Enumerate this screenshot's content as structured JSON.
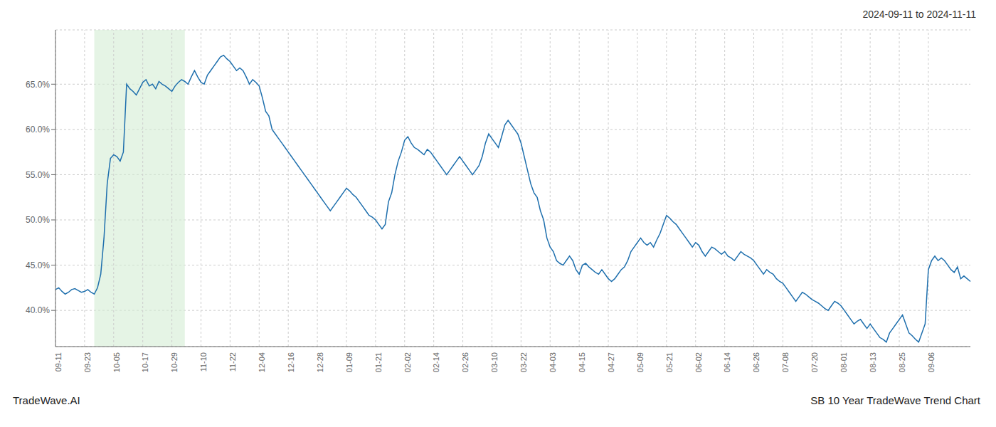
{
  "chart_data": {
    "type": "line",
    "title": "2024-09-11 to 2024-11-11",
    "annotations": [
      "TradeWave.AI",
      "SB 10 Year TradeWave Trend Chart"
    ],
    "color": "#1e6fad",
    "grid": true,
    "ylim": [
      36.0,
      71.0
    ],
    "yticks": [
      {
        "value": 40.0,
        "label": "40.0%"
      },
      {
        "value": 45.0,
        "label": "45.0%"
      },
      {
        "value": 50.0,
        "label": "50.0%"
      },
      {
        "value": 55.0,
        "label": "55.0%"
      },
      {
        "value": 60.0,
        "label": "60.0%"
      },
      {
        "value": 65.0,
        "label": "65.0%"
      }
    ],
    "highlight": {
      "from": 12,
      "to": 40,
      "color": "#d4ecd4"
    },
    "categories": [
      "09-11",
      null,
      null,
      null,
      null,
      null,
      null,
      null,
      null,
      "09-23",
      null,
      null,
      null,
      null,
      null,
      null,
      null,
      null,
      "10-05",
      null,
      null,
      null,
      null,
      null,
      null,
      null,
      null,
      "10-17",
      null,
      null,
      null,
      null,
      null,
      null,
      null,
      null,
      "10-29",
      null,
      null,
      null,
      null,
      null,
      null,
      null,
      null,
      "11-10",
      null,
      null,
      null,
      null,
      null,
      null,
      null,
      null,
      "11-22",
      null,
      null,
      null,
      null,
      null,
      null,
      null,
      null,
      "12-04",
      null,
      null,
      null,
      null,
      null,
      null,
      null,
      null,
      "12-16",
      null,
      null,
      null,
      null,
      null,
      null,
      null,
      null,
      "12-28",
      null,
      null,
      null,
      null,
      null,
      null,
      null,
      null,
      "01-09",
      null,
      null,
      null,
      null,
      null,
      null,
      null,
      null,
      "01-21",
      null,
      null,
      null,
      null,
      null,
      null,
      null,
      null,
      "02-02",
      null,
      null,
      null,
      null,
      null,
      null,
      null,
      null,
      "02-14",
      null,
      null,
      null,
      null,
      null,
      null,
      null,
      null,
      "02-26",
      null,
      null,
      null,
      null,
      null,
      null,
      null,
      null,
      "03-10",
      null,
      null,
      null,
      null,
      null,
      null,
      null,
      null,
      "03-22",
      null,
      null,
      null,
      null,
      null,
      null,
      null,
      null,
      "04-03",
      null,
      null,
      null,
      null,
      null,
      null,
      null,
      null,
      "04-15",
      null,
      null,
      null,
      null,
      null,
      null,
      null,
      null,
      "04-27",
      null,
      null,
      null,
      null,
      null,
      null,
      null,
      null,
      "05-09",
      null,
      null,
      null,
      null,
      null,
      null,
      null,
      null,
      "05-21",
      null,
      null,
      null,
      null,
      null,
      null,
      null,
      null,
      "06-02",
      null,
      null,
      null,
      null,
      null,
      null,
      null,
      null,
      "06-14",
      null,
      null,
      null,
      null,
      null,
      null,
      null,
      null,
      "06-26",
      null,
      null,
      null,
      null,
      null,
      null,
      null,
      null,
      "07-08",
      null,
      null,
      null,
      null,
      null,
      null,
      null,
      null,
      "07-20",
      null,
      null,
      null,
      null,
      null,
      null,
      null,
      null,
      "08-01",
      null,
      null,
      null,
      null,
      null,
      null,
      null,
      null,
      "08-13",
      null,
      null,
      null,
      null,
      null,
      null,
      null,
      null,
      "08-25",
      null,
      null,
      null,
      null,
      null,
      null,
      null,
      null,
      "09-06",
      null,
      null,
      null,
      null,
      null,
      null,
      null,
      null,
      null,
      null,
      null,
      null,
      null
    ],
    "values": [
      42.3,
      42.5,
      42.1,
      41.8,
      42.0,
      42.3,
      42.4,
      42.2,
      42.0,
      42.1,
      42.3,
      42.0,
      41.8,
      42.5,
      44.0,
      48.0,
      54.0,
      56.8,
      57.2,
      57.0,
      56.5,
      57.5,
      65.0,
      64.5,
      64.2,
      63.8,
      64.5,
      65.2,
      65.5,
      64.8,
      65.0,
      64.5,
      65.3,
      65.0,
      64.8,
      64.5,
      64.2,
      64.8,
      65.2,
      65.5,
      65.3,
      65.0,
      65.8,
      66.5,
      65.8,
      65.2,
      65.0,
      66.0,
      66.5,
      67.0,
      67.5,
      68.0,
      68.2,
      67.8,
      67.5,
      67.0,
      66.5,
      66.8,
      66.5,
      65.8,
      65.0,
      65.5,
      65.2,
      64.8,
      63.5,
      62.0,
      61.5,
      60.0,
      59.5,
      59.0,
      58.5,
      58.0,
      57.5,
      57.0,
      56.5,
      56.0,
      55.5,
      55.0,
      54.5,
      54.0,
      53.5,
      53.0,
      52.5,
      52.0,
      51.5,
      51.0,
      51.5,
      52.0,
      52.5,
      53.0,
      53.5,
      53.2,
      52.8,
      52.5,
      52.0,
      51.5,
      51.0,
      50.5,
      50.3,
      50.0,
      49.5,
      49.0,
      49.5,
      52.0,
      53.0,
      55.0,
      56.5,
      57.5,
      58.8,
      59.2,
      58.5,
      58.0,
      57.8,
      57.5,
      57.2,
      57.8,
      57.5,
      57.0,
      56.5,
      56.0,
      55.5,
      55.0,
      55.5,
      56.0,
      56.5,
      57.0,
      56.5,
      56.0,
      55.5,
      55.0,
      55.5,
      56.0,
      57.0,
      58.5,
      59.5,
      59.0,
      58.5,
      58.0,
      59.2,
      60.5,
      61.0,
      60.5,
      60.0,
      59.5,
      58.5,
      57.0,
      55.5,
      54.0,
      53.0,
      52.5,
      51.0,
      50.0,
      48.0,
      47.0,
      46.5,
      45.5,
      45.2,
      45.0,
      45.5,
      46.0,
      45.5,
      44.5,
      44.0,
      45.0,
      45.2,
      44.8,
      44.5,
      44.2,
      44.0,
      44.5,
      44.0,
      43.5,
      43.2,
      43.5,
      44.0,
      44.5,
      44.8,
      45.5,
      46.5,
      47.0,
      47.5,
      48.0,
      47.5,
      47.2,
      47.5,
      47.0,
      47.8,
      48.5,
      49.5,
      50.5,
      50.2,
      49.8,
      49.5,
      49.0,
      48.5,
      48.0,
      47.5,
      47.0,
      47.5,
      47.2,
      46.5,
      46.0,
      46.5,
      47.0,
      46.8,
      46.5,
      46.2,
      46.5,
      46.0,
      45.8,
      45.5,
      46.0,
      46.5,
      46.2,
      46.0,
      45.8,
      45.5,
      45.0,
      44.5,
      44.0,
      44.5,
      44.2,
      44.0,
      43.5,
      43.2,
      43.0,
      42.5,
      42.0,
      41.5,
      41.0,
      41.5,
      42.0,
      41.8,
      41.5,
      41.2,
      41.0,
      40.8,
      40.5,
      40.2,
      40.0,
      40.5,
      41.0,
      40.8,
      40.5,
      40.0,
      39.5,
      39.0,
      38.5,
      38.8,
      39.0,
      38.5,
      38.0,
      38.5,
      38.0,
      37.5,
      37.0,
      36.8,
      36.5,
      37.5,
      38.0,
      38.5,
      39.0,
      39.5,
      38.5,
      37.5,
      37.2,
      36.8,
      36.5,
      37.5,
      38.5,
      44.5,
      45.5,
      46.0,
      45.5,
      45.8,
      45.5,
      45.0,
      44.5,
      44.2,
      44.8,
      43.5,
      43.8,
      43.5,
      43.2
    ]
  }
}
